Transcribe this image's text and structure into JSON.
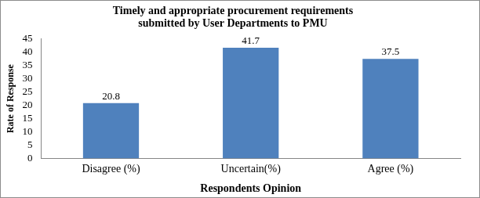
{
  "chart_data": {
    "type": "bar",
    "title": "Timely and appropriate procurement requirements submitted by User Departments to PMU",
    "x_label": "Respondents Opinion",
    "y_label": "Rate of Response",
    "categories": [
      "Disagree (%)",
      "Uncertain(%)",
      "Agree (%)"
    ],
    "values": [
      20.8,
      41.7,
      37.5
    ],
    "color": "#4f81bd",
    "ylim": [
      0,
      45
    ],
    "yticks": [
      0,
      5,
      10,
      15,
      20,
      25,
      30,
      35,
      40,
      45
    ],
    "grid": false,
    "data_labels": true
  }
}
